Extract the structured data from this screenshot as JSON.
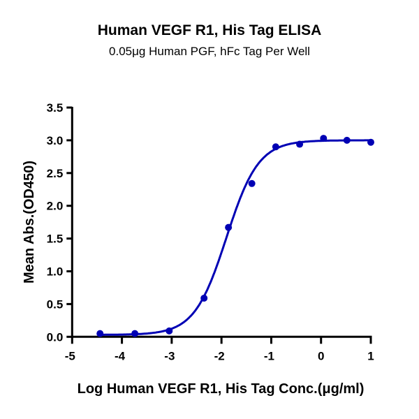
{
  "chart_data": {
    "type": "scatter",
    "title": "Human VEGF R1, His Tag ELISA",
    "subtitle": "0.05μg Human PGF, hFc Tag Per Well",
    "xlabel": "Log Human VEGF R1, His Tag Conc.(μg/ml)",
    "ylabel": "Mean Abs.(OD450)",
    "xlim": [
      -5,
      1
    ],
    "ylim": [
      0,
      3.5
    ],
    "xticks": [
      "-5",
      "-4",
      "-3",
      "-2",
      "-1",
      "0",
      "1"
    ],
    "yticks": [
      "0.0",
      "0.5",
      "1.0",
      "1.5",
      "2.0",
      "2.5",
      "3.0",
      "3.5"
    ],
    "grid": false,
    "fit_curve": "sigmoidal",
    "color": "#0000b4",
    "x": [
      -4.44,
      -3.74,
      -3.05,
      -2.35,
      -1.86,
      -1.39,
      -0.91,
      -0.43,
      0.05,
      0.52,
      1.0
    ],
    "y": [
      0.05,
      0.05,
      0.09,
      0.59,
      1.67,
      2.34,
      2.9,
      2.94,
      3.03,
      3.0,
      2.97
    ]
  }
}
